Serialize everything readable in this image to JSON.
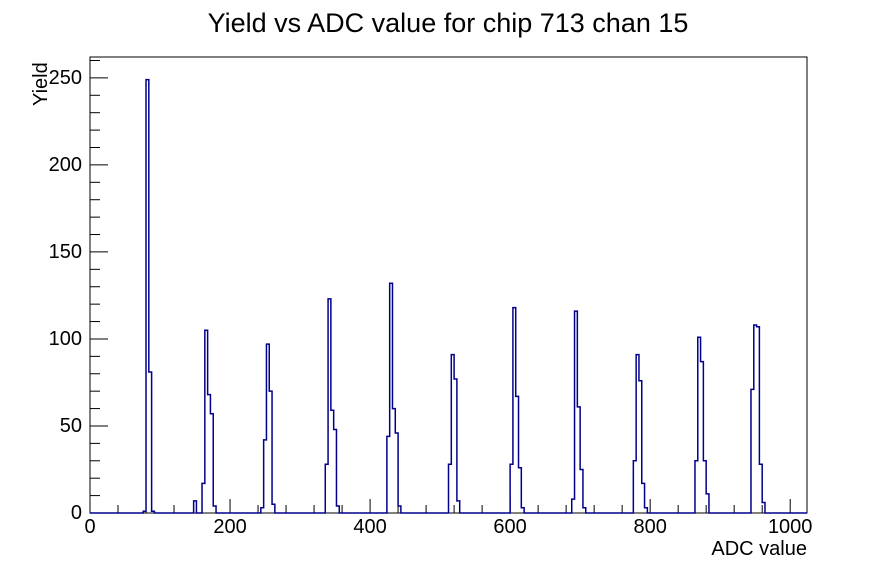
{
  "window": {
    "background": "#ffffff"
  },
  "chart_data": {
    "type": "histogram",
    "title": "Yield vs ADC value for chip 713 chan 15",
    "xlabel": "ADC value",
    "ylabel": "Yield",
    "xlim": [
      0,
      1024
    ],
    "ylim": [
      0,
      262
    ],
    "x_major_ticks": [
      0,
      200,
      400,
      600,
      800,
      1000
    ],
    "x_minor_step": 40,
    "y_major_ticks": [
      0,
      50,
      100,
      150,
      200,
      250
    ],
    "y_minor_step": 10,
    "grid": false,
    "legend": "none",
    "line_color": "#00008b",
    "axis_color": "#000000",
    "bin_width": 4,
    "bins": [
      [
        76,
        1
      ],
      [
        80,
        249
      ],
      [
        84,
        81
      ],
      [
        88,
        1
      ],
      [
        148,
        7
      ],
      [
        160,
        17
      ],
      [
        164,
        105
      ],
      [
        168,
        68
      ],
      [
        172,
        57
      ],
      [
        176,
        4
      ],
      [
        244,
        3
      ],
      [
        248,
        42
      ],
      [
        252,
        97
      ],
      [
        256,
        70
      ],
      [
        260,
        5
      ],
      [
        336,
        28
      ],
      [
        340,
        123
      ],
      [
        344,
        59
      ],
      [
        348,
        48
      ],
      [
        352,
        4
      ],
      [
        424,
        44
      ],
      [
        428,
        132
      ],
      [
        432,
        60
      ],
      [
        436,
        46
      ],
      [
        440,
        4
      ],
      [
        512,
        28
      ],
      [
        516,
        91
      ],
      [
        520,
        77
      ],
      [
        524,
        7
      ],
      [
        600,
        28
      ],
      [
        604,
        118
      ],
      [
        608,
        67
      ],
      [
        612,
        26
      ],
      [
        616,
        3
      ],
      [
        688,
        8
      ],
      [
        692,
        116
      ],
      [
        696,
        61
      ],
      [
        700,
        25
      ],
      [
        704,
        3
      ],
      [
        776,
        30
      ],
      [
        780,
        91
      ],
      [
        784,
        76
      ],
      [
        788,
        17
      ],
      [
        792,
        3
      ],
      [
        864,
        30
      ],
      [
        868,
        101
      ],
      [
        872,
        87
      ],
      [
        876,
        30
      ],
      [
        880,
        11
      ],
      [
        944,
        71
      ],
      [
        948,
        108
      ],
      [
        952,
        107
      ],
      [
        956,
        28
      ],
      [
        960,
        6
      ]
    ]
  }
}
